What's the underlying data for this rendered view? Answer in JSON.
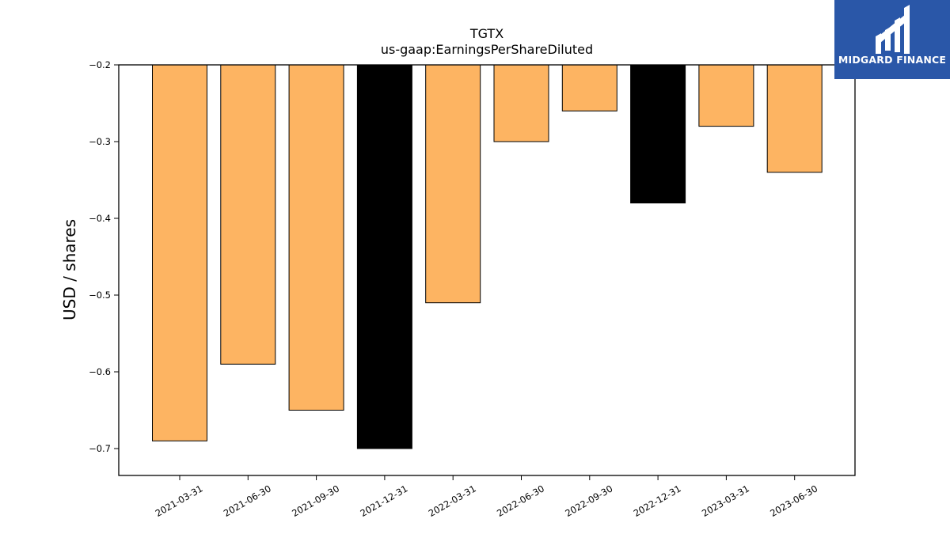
{
  "chart_data": {
    "type": "bar",
    "title": "TGTX",
    "subtitle": "us-gaap:EarningsPerShareDiluted",
    "ylabel": "USD / shares",
    "xlabel": "",
    "categories": [
      "2021-03-31",
      "2021-06-30",
      "2021-09-30",
      "2021-12-31",
      "2022-03-31",
      "2022-06-30",
      "2022-09-30",
      "2022-12-31",
      "2023-03-31",
      "2023-06-30"
    ],
    "values": [
      -0.69,
      -0.59,
      -0.65,
      -0.7,
      -0.51,
      -0.3,
      -0.26,
      -0.38,
      -0.28,
      -0.34
    ],
    "bar_colors": [
      "#fdb462",
      "#fdb462",
      "#fdb462",
      "#000000",
      "#fdb462",
      "#fdb462",
      "#fdb462",
      "#000000",
      "#fdb462",
      "#fdb462"
    ],
    "ylim": [
      -0.735,
      -0.2
    ],
    "yticks": [
      -0.2,
      -0.3,
      -0.4,
      -0.5,
      -0.6,
      -0.7
    ],
    "ytick_labels": [
      "−0.2",
      "−0.3",
      "−0.4",
      "−0.5",
      "−0.6",
      "−0.7"
    ],
    "grid": false,
    "legend": "none"
  },
  "logo": {
    "text": "MIDGARD FINANCE",
    "background": "#2a57a8"
  }
}
